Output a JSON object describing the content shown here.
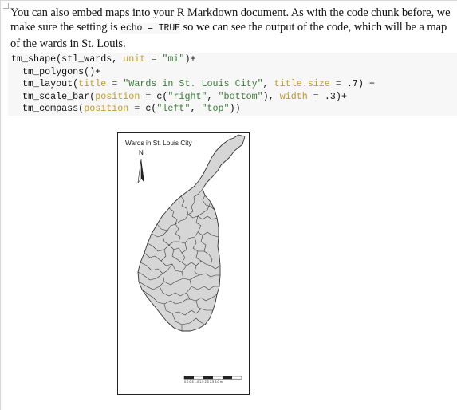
{
  "paragraph": {
    "before_code": "You can also embed maps into your R Markdown document. As with the code chunk before, we make sure the setting is ",
    "inline_code": "echo = TRUE",
    "after_code": " so we can see the output of the code, which will be a map of the wards in St. Louis."
  },
  "code": {
    "l1_fn": "tm_shape(stl_wards, ",
    "l1_arg": "unit",
    "l1_eq": " = ",
    "l1_str": "\"mi\"",
    "l1_end": ")+",
    "l2": "  tm_polygons()+",
    "l3_fn": "  tm_layout(",
    "l3_arg1": "title",
    "l3_eq1": " = ",
    "l3_str1": "\"Wards in St. Louis City\"",
    "l3_mid": ", ",
    "l3_arg2": "title.size",
    "l3_eq2": " = ",
    "l3_end": ".7) +",
    "l4_fn": "  tm_scale_bar(",
    "l4_arg1": "position",
    "l4_eq1": " = ",
    "l4_c": "c(",
    "l4_str1": "\"right\"",
    "l4_comma": ", ",
    "l4_str2": "\"bottom\"",
    "l4_close": "), ",
    "l4_arg2": "width",
    "l4_eq2": " = ",
    "l4_end": ".3)+",
    "l5_fn": "  tm_compass(",
    "l5_arg": "position",
    "l5_eq": " = ",
    "l5_c": "c(",
    "l5_str1": "\"left\"",
    "l5_comma": ", ",
    "l5_str2": "\"top\"",
    "l5_end": "))"
  },
  "map": {
    "title": "Wards in St. Louis City",
    "compass_label": "N",
    "scale_labels": "0.0 0.5 1.0 1.5 2.0 2.5 3.0 mi",
    "fill_color": "#d6d6d6",
    "stroke_color": "#333333"
  }
}
